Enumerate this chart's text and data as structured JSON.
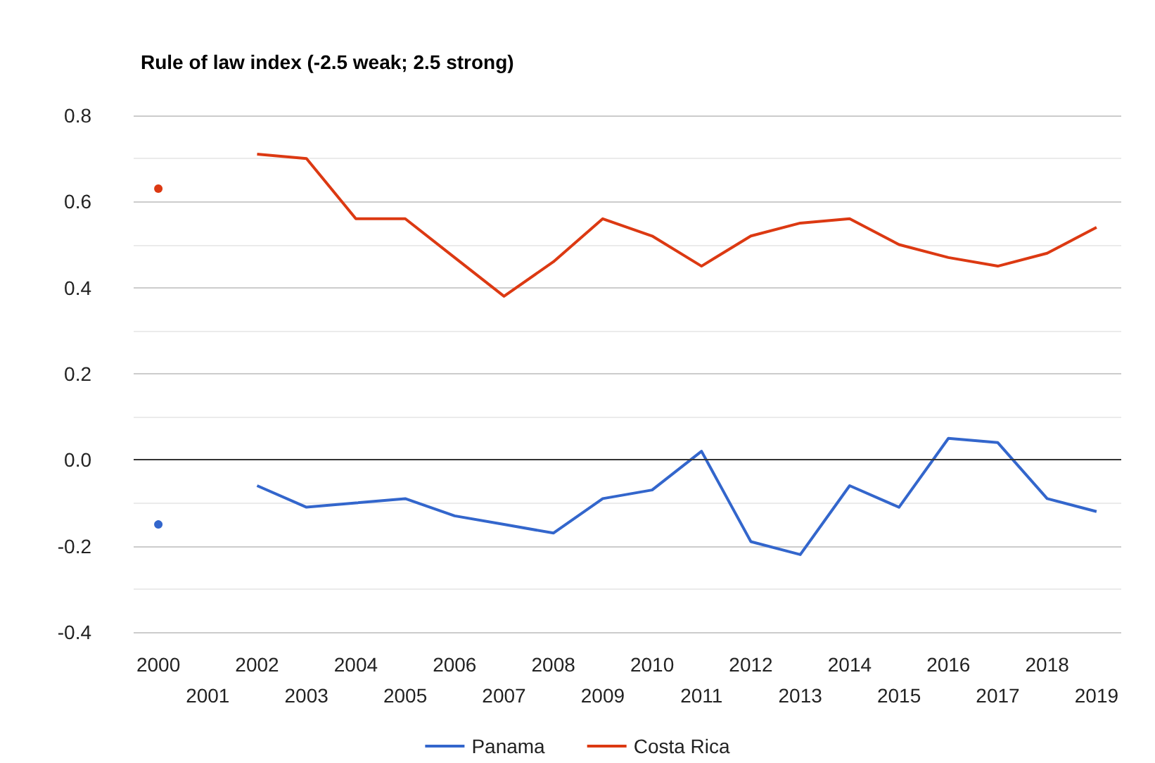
{
  "chart_data": {
    "type": "line",
    "title": "Rule of law index (-2.5 weak; 2.5 strong)",
    "categories": [
      "2000",
      "2001",
      "2002",
      "2003",
      "2004",
      "2005",
      "2006",
      "2007",
      "2008",
      "2009",
      "2010",
      "2011",
      "2012",
      "2013",
      "2014",
      "2015",
      "2016",
      "2017",
      "2018",
      "2019"
    ],
    "series": [
      {
        "name": "Panama",
        "color": "#3366cc",
        "values": [
          -0.15,
          null,
          -0.06,
          -0.11,
          -0.1,
          -0.09,
          -0.13,
          -0.15,
          -0.17,
          -0.09,
          -0.07,
          0.02,
          -0.19,
          -0.22,
          -0.06,
          -0.11,
          0.05,
          0.04,
          -0.09,
          -0.12
        ]
      },
      {
        "name": "Costa Rica",
        "color": "#dc3912",
        "values": [
          0.63,
          null,
          0.71,
          0.7,
          0.56,
          0.56,
          0.47,
          0.38,
          0.46,
          0.56,
          0.52,
          0.45,
          0.52,
          0.55,
          0.56,
          0.5,
          0.47,
          0.45,
          0.48,
          0.54
        ]
      }
    ],
    "ylim": [
      -0.4,
      0.8
    ],
    "yticks": [
      {
        "value": -0.4,
        "label": "-0.4"
      },
      {
        "value": -0.2,
        "label": "-0.2"
      },
      {
        "value": 0,
        "label": "0.0"
      },
      {
        "value": 0.2,
        "label": "0.2"
      },
      {
        "value": 0.4,
        "label": "0.4"
      },
      {
        "value": 0.6,
        "label": "0.6"
      },
      {
        "value": 0.8,
        "label": "0.8"
      }
    ],
    "ref_lines": [
      {
        "axis": "y",
        "value": 0,
        "color": "#333333"
      }
    ],
    "grid": "y",
    "legend": "bottom"
  }
}
